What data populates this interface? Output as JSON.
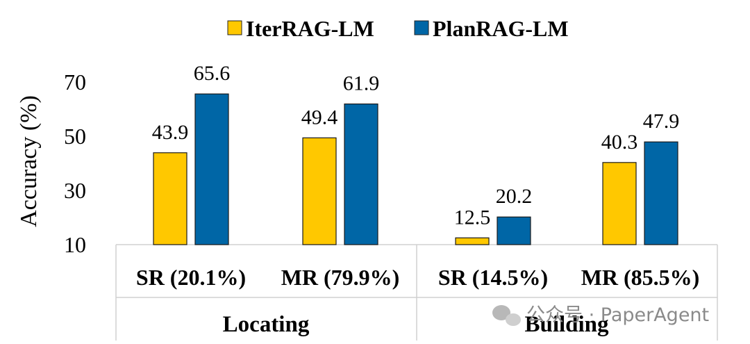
{
  "chart_data": {
    "type": "bar",
    "ylabel": "Accuracy (%)",
    "ylim": [
      10,
      70
    ],
    "yticks": [
      10,
      30,
      50,
      70
    ],
    "grid": false,
    "legend": "top-center",
    "categories": [
      "SR (20.1%)",
      "MR (79.9%)",
      "SR (14.5%)",
      "MR (85.5%)"
    ],
    "groups": [
      {
        "label": "Locating",
        "categories": [
          0,
          1
        ]
      },
      {
        "label": "Building",
        "categories": [
          2,
          3
        ]
      }
    ],
    "series": [
      {
        "name": "IterRAG-LM",
        "color": "#FFC800",
        "values": [
          43.9,
          49.4,
          12.5,
          40.3
        ],
        "labels": [
          "43.9",
          "49.4",
          "12.5",
          "40.3"
        ]
      },
      {
        "name": "PlanRAG-LM",
        "color": "#0066A6",
        "values": [
          65.6,
          61.9,
          20.2,
          47.9
        ],
        "labels": [
          "65.6",
          "61.9",
          "20.2",
          "47.9"
        ]
      }
    ]
  },
  "watermark": {
    "text": "公众号 · PaperAgent",
    "icon": "wechat-icon"
  }
}
